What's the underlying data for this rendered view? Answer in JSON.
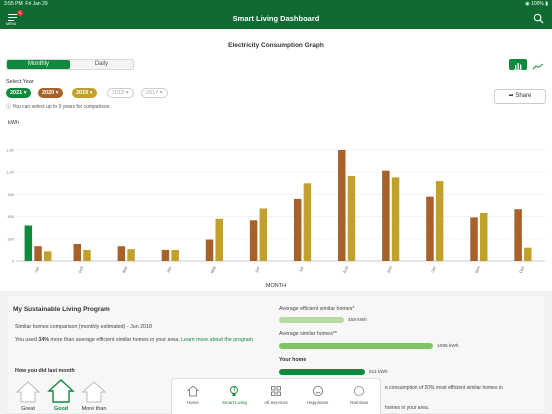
{
  "status": {
    "time": "3:55 PM",
    "date": "Fri Jan 29",
    "battery": "100%"
  },
  "header": {
    "title": "Smart Living Dashboard",
    "menu_label": "MENU",
    "menu_badge": "1"
  },
  "graph": {
    "title": "Electricity Consumption Graph",
    "tabs": [
      "Monthly",
      "Daily"
    ],
    "select_year_label": "Select Year",
    "years": [
      {
        "label": "2021",
        "color": "#0f8a3c",
        "active": true
      },
      {
        "label": "2020",
        "color": "#a8612a",
        "active": true
      },
      {
        "label": "2019",
        "color": "#c2a12a",
        "active": true
      },
      {
        "label": "2018",
        "color": "#999999",
        "active": false
      },
      {
        "label": "2017",
        "color": "#999999",
        "active": false
      }
    ],
    "note": "You can select up to 3 years for comparison.",
    "share_label": "Share"
  },
  "chart_data": {
    "type": "bar",
    "ylabel": "kWh",
    "xlabel": "MONTH",
    "ylim": [
      0,
      1500
    ],
    "yticks": [
      0,
      300,
      600,
      900,
      1200,
      1500
    ],
    "ytick_labels": [
      "0",
      "300",
      "600",
      "900",
      "1.2K",
      "1.5K"
    ],
    "categories": [
      "Jan",
      "Feb",
      "Mar",
      "Apr",
      "May",
      "Jun",
      "Jul",
      "Aug",
      "Sep",
      "Oct",
      "Nov",
      "Dec"
    ],
    "series": [
      {
        "name": "2021",
        "color": "#0f8a3c",
        "values": [
          480,
          0,
          0,
          0,
          0,
          0,
          0,
          0,
          0,
          0,
          0,
          0
        ]
      },
      {
        "name": "2020",
        "color": "#a8612a",
        "values": [
          200,
          230,
          200,
          150,
          290,
          550,
          840,
          1500,
          1220,
          870,
          590,
          700
        ]
      },
      {
        "name": "2019",
        "color": "#c2a12a",
        "values": [
          130,
          150,
          160,
          150,
          570,
          710,
          1050,
          1150,
          1130,
          1080,
          650,
          180
        ]
      }
    ]
  },
  "program": {
    "title": "My Sustainable Living Program",
    "subtitle": "Similar homes comparison (monthly estimated) - Jun 2018",
    "used_prefix": "You used ",
    "used_pct": "34%",
    "used_suffix": " more than average efficient similar homes in your area. ",
    "learn_more": "Learn more about the program",
    "last_month_label": "How you did last month",
    "ratings": [
      "Great",
      "Good",
      "More than"
    ],
    "comparisons": [
      {
        "label": "Average efficient similar homes*",
        "value": "458 kWh",
        "fraction": 0.296,
        "color": "#b5dba0"
      },
      {
        "label": "Average similar homes**",
        "value": "1095 kWh",
        "fraction": 0.707,
        "color": "#7fc462"
      },
      {
        "label": "Your home",
        "value": "611 kWh",
        "fraction": 0.395,
        "color": "#0f8a3c"
      }
    ],
    "footnote_1": "e consumption of 20% most efficient similar homes in",
    "footnote_2": "homes in your area."
  },
  "tabs": [
    {
      "label": "Home",
      "icon": "home-icon",
      "active": false
    },
    {
      "label": "Smart Living",
      "icon": "leaf-bulb-icon",
      "active": true
    },
    {
      "label": "All Services",
      "icon": "grid-icon",
      "active": false
    },
    {
      "label": "Happiness",
      "icon": "smiley-icon",
      "active": false
    },
    {
      "label": "Rammas",
      "icon": "chat-circle-icon",
      "active": false
    }
  ]
}
